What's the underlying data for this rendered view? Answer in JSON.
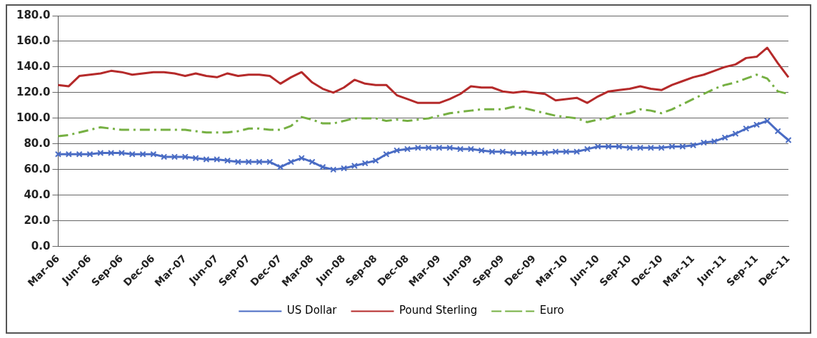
{
  "chart_data": {
    "type": "line",
    "categories": [
      "Mar-06",
      null,
      null,
      "Jun-06",
      null,
      null,
      "Sep-06",
      null,
      null,
      "Dec-06",
      null,
      null,
      "Mar-07",
      null,
      null,
      "Jun-07",
      null,
      null,
      "Sep-07",
      null,
      null,
      "Dec-07",
      null,
      null,
      "Mar-08",
      null,
      null,
      "Jun-08",
      null,
      null,
      "Sep-08",
      null,
      null,
      "Dec-08",
      null,
      null,
      "Mar-09",
      null,
      null,
      "Jun-09",
      null,
      null,
      "Sep-09",
      null,
      null,
      "Dec-09",
      null,
      null,
      "Mar-10",
      null,
      null,
      "Jun-10",
      null,
      null,
      "Sep-10",
      null,
      null,
      "Dec-10",
      null,
      null,
      "Mar-11",
      null,
      null,
      "Jun-11",
      null,
      null,
      "Sep-11",
      null,
      null,
      "Dec-11"
    ],
    "series": [
      {
        "name": "US Dollar",
        "color": "#4a6cc4",
        "marker": "cross",
        "line_style": "solid",
        "values": [
          72,
          72,
          72,
          72,
          73,
          73,
          73,
          72,
          72,
          72,
          70,
          70,
          70,
          69,
          68,
          68,
          67,
          66,
          66,
          66,
          66,
          62,
          66,
          69,
          66,
          62,
          60,
          61,
          63,
          65,
          67,
          72,
          75,
          76,
          77,
          77,
          77,
          77,
          76,
          76,
          75,
          74,
          74,
          73,
          73,
          73,
          73,
          74,
          74,
          74,
          76,
          78,
          78,
          78,
          77,
          77,
          77,
          77,
          78,
          78,
          79,
          81,
          82,
          85,
          88,
          92,
          95,
          98,
          90,
          83
        ]
      },
      {
        "name": "Pound Sterling",
        "color": "#b52a2a",
        "marker": "none",
        "line_style": "solid",
        "values": [
          126,
          125,
          133,
          134,
          135,
          137,
          136,
          134,
          135,
          136,
          136,
          135,
          133,
          135,
          133,
          132,
          135,
          133,
          134,
          134,
          133,
          127,
          132,
          136,
          128,
          123,
          120,
          124,
          130,
          127,
          126,
          126,
          118,
          115,
          112,
          112,
          112,
          115,
          119,
          125,
          124,
          124,
          121,
          120,
          121,
          120,
          119,
          114,
          115,
          116,
          112,
          117,
          121,
          122,
          123,
          125,
          123,
          122,
          126,
          129,
          132,
          134,
          137,
          140,
          142,
          147,
          148,
          155,
          143,
          132
        ]
      },
      {
        "name": "Euro",
        "color": "#76b043",
        "marker": "none",
        "line_style": "dashed",
        "values": [
          86,
          87,
          89,
          91,
          93,
          92,
          91,
          91,
          91,
          91,
          91,
          91,
          91,
          90,
          89,
          89,
          89,
          90,
          92,
          92,
          91,
          91,
          94,
          101,
          99,
          96,
          96,
          98,
          100,
          100,
          100,
          98,
          99,
          98,
          99,
          100,
          102,
          104,
          105,
          106,
          107,
          107,
          107,
          109,
          108,
          106,
          104,
          102,
          101,
          100,
          97,
          99,
          100,
          103,
          104,
          107,
          106,
          104,
          107,
          111,
          115,
          119,
          123,
          126,
          128,
          131,
          134,
          131,
          121,
          119
        ]
      }
    ],
    "ylim": [
      0,
      180
    ],
    "yticks": [
      {
        "value": 0,
        "label": "0.0"
      },
      {
        "value": 20,
        "label": "20.0"
      },
      {
        "value": 40,
        "label": "40.0"
      },
      {
        "value": 60,
        "label": "60.0"
      },
      {
        "value": 80,
        "label": "80.0"
      },
      {
        "value": 100,
        "label": "100.0"
      },
      {
        "value": 120,
        "label": "120.0"
      },
      {
        "value": 140,
        "label": "140.0"
      },
      {
        "value": 160,
        "label": "160.0"
      },
      {
        "value": 180,
        "label": "180.0"
      }
    ],
    "grid": "y",
    "legend": "bottom"
  }
}
